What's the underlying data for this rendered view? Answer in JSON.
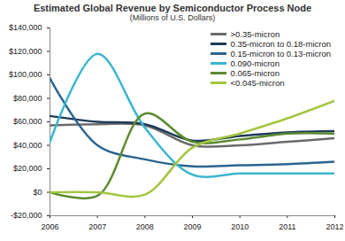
{
  "chart_data": {
    "type": "line",
    "title": "Estimated Global Revenue by Semiconductor Process Node",
    "subtitle": "(Millions of U.S. Dollars)",
    "x": [
      2006,
      2007,
      2008,
      2009,
      2010,
      2011,
      2012
    ],
    "xlim": [
      2006,
      2012
    ],
    "xticks": [
      2006,
      2007,
      2008,
      2009,
      2010,
      2011,
      2012
    ],
    "ylim": [
      -20000,
      140000
    ],
    "yticks": [
      {
        "value": -20000,
        "label": "-$20,000"
      },
      {
        "value": 0,
        "label": "$0"
      },
      {
        "value": 20000,
        "label": "$20,000"
      },
      {
        "value": 40000,
        "label": "$40,000"
      },
      {
        "value": 60000,
        "label": "$60,000"
      },
      {
        "value": 80000,
        "label": "$80,000"
      },
      {
        "value": 100000,
        "label": "$100,000"
      },
      {
        "value": 120000,
        "label": "$120,000"
      },
      {
        "value": 140000,
        "label": "$140,000"
      }
    ],
    "grid": false,
    "legend": "top-right",
    "series": [
      {
        "name": ">0.35-micron",
        "color": "#6b6b6b",
        "values": [
          57000,
          58000,
          57000,
          40000,
          40000,
          43000,
          46000
        ]
      },
      {
        "name": "0.35-micron to 0.18-micron",
        "color": "#1f3b5a",
        "values": [
          65000,
          60000,
          58000,
          44000,
          48000,
          51000,
          52000
        ]
      },
      {
        "name": "0.15-micron to 0.13-micron",
        "color": "#2a6592",
        "values": [
          97000,
          40000,
          28000,
          22000,
          23000,
          24000,
          26000
        ]
      },
      {
        "name": "0.090-micron",
        "color": "#3bb6cf",
        "values": [
          43000,
          118000,
          55000,
          15000,
          16000,
          16000,
          16000
        ]
      },
      {
        "name": "0.065-micron",
        "color": "#5b8a2f",
        "values": [
          0,
          -3000,
          67000,
          43000,
          45000,
          50000,
          50000
        ]
      },
      {
        "name": "<0.045-micron",
        "color": "#a3c640",
        "values": [
          0,
          0,
          -2000,
          38000,
          50000,
          63000,
          78000
        ]
      }
    ]
  }
}
